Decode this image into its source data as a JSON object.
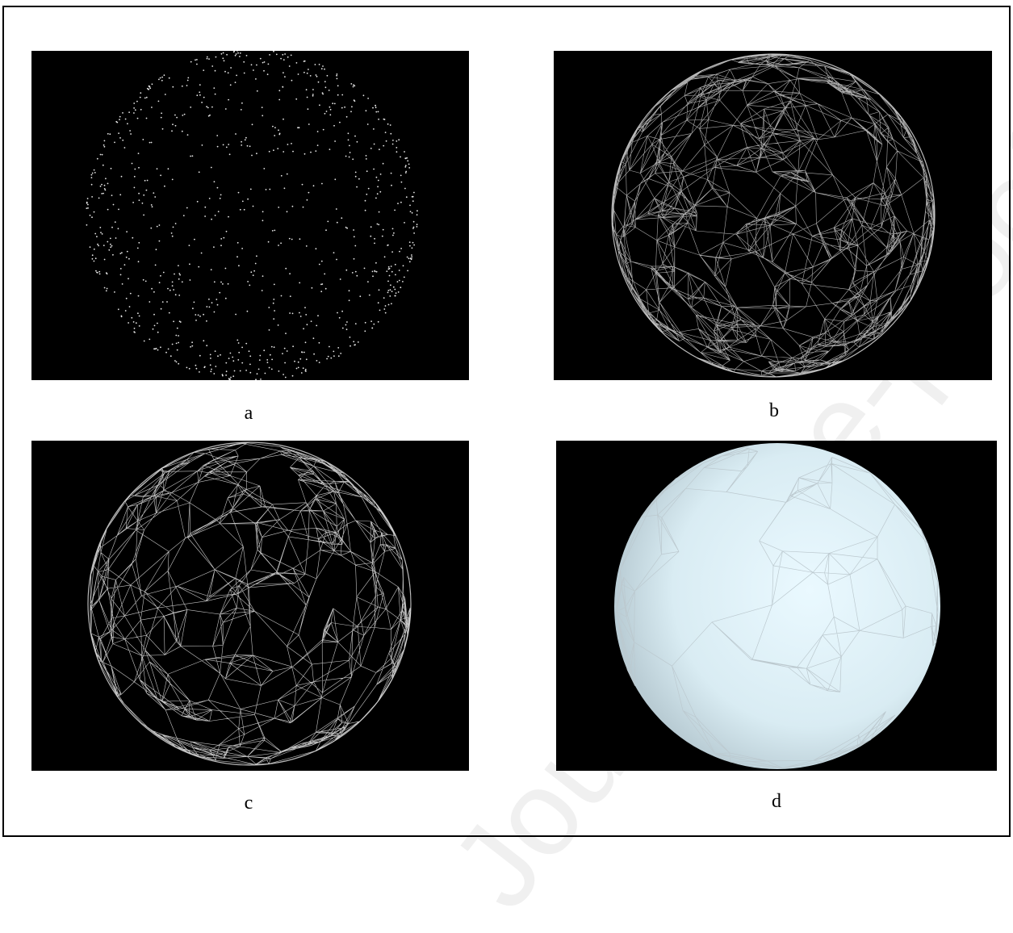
{
  "figure": {
    "panels": [
      {
        "id": "a",
        "caption": "a",
        "content": "point-cloud"
      },
      {
        "id": "b",
        "caption": "b",
        "content": "dense-wireframe-mesh"
      },
      {
        "id": "c",
        "caption": "c",
        "content": "wireframe-mesh"
      },
      {
        "id": "d",
        "caption": "d",
        "content": "shaded-surface-mesh"
      }
    ],
    "watermark": "Journal Pre-proof"
  },
  "colors": {
    "panel_background": "#000000",
    "point_color": "#e8e8e8",
    "wire_color": "#e6e6e6",
    "surface_color": "#d9ecf3",
    "surface_edge_color": "#bcc9cf"
  }
}
